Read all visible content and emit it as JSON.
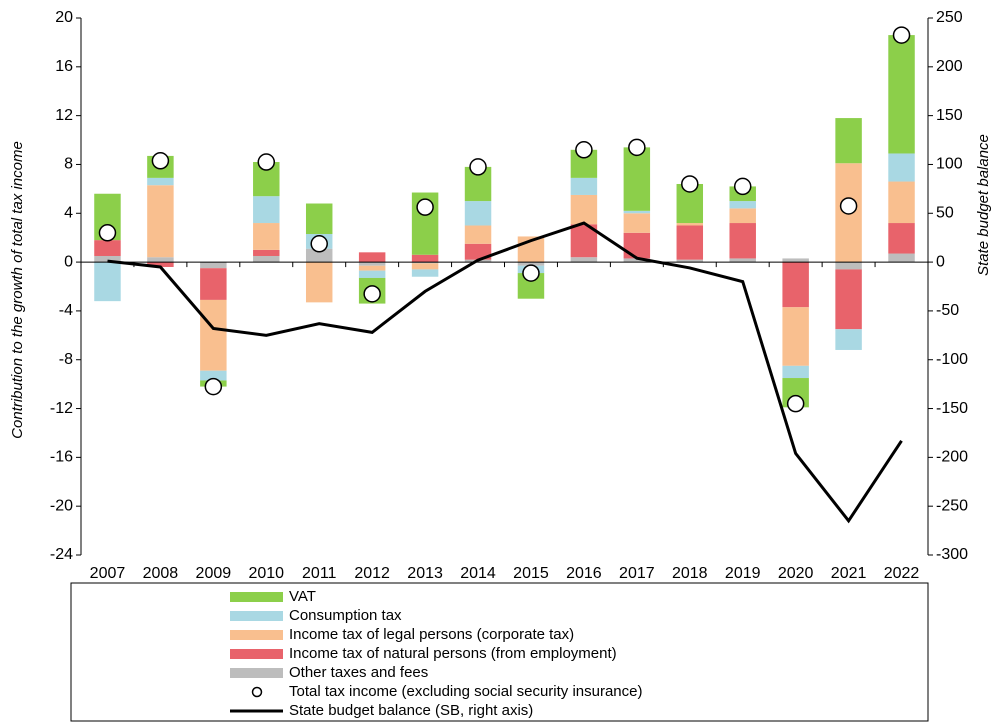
{
  "chart_data": {
    "type": "bar",
    "y_label": "Contribution to the growth of total tax income",
    "y2_label": "State budget balance",
    "categories": [
      "2007",
      "2008",
      "2009",
      "2010",
      "2011",
      "2012",
      "2013",
      "2014",
      "2015",
      "2016",
      "2017",
      "2018",
      "2019",
      "2020",
      "2021",
      "2022"
    ],
    "ylim": [
      -24,
      20
    ],
    "yticks": [
      -24,
      -20,
      -16,
      -12,
      -8,
      -4,
      0,
      4,
      8,
      12,
      16,
      20
    ],
    "y2lim": [
      -300,
      250
    ],
    "y2ticks": [
      -300,
      -250,
      -200,
      -150,
      -100,
      -50,
      0,
      50,
      100,
      150,
      200,
      250
    ],
    "series": [
      {
        "name": "VAT",
        "mark": "bar",
        "color": "#8ccf4a",
        "values": [
          3.8,
          1.8,
          -0.5,
          2.8,
          2.5,
          -2.1,
          5.1,
          2.8,
          -2.1,
          2.3,
          5.2,
          3.2,
          1.2,
          -2.4,
          3.7,
          9.7
        ]
      },
      {
        "name": "Consumption tax",
        "mark": "bar",
        "color": "#a9d8e3",
        "values": [
          -3.2,
          0.6,
          -0.8,
          2.2,
          1.2,
          -0.6,
          -0.6,
          2.0,
          -0.6,
          1.4,
          0.2,
          0,
          0.6,
          -1.0,
          -1.7,
          2.3
        ]
      },
      {
        "name": "Income tax of legal persons (corporate tax)",
        "mark": "bar",
        "color": "#f9bf8f",
        "values": [
          0,
          5.9,
          -5.8,
          2.2,
          -3.3,
          -0.4,
          -0.5,
          1.5,
          2.1,
          2.4,
          1.6,
          0.2,
          1.2,
          -4.8,
          8.1,
          3.4
        ]
      },
      {
        "name": "Income tax of natural persons (from employment)",
        "mark": "bar",
        "color": "#e8636b",
        "values": [
          1.3,
          -0.4,
          -2.6,
          0.5,
          0,
          0.8,
          0.6,
          1.3,
          0,
          2.7,
          2.1,
          2.8,
          2.9,
          -3.7,
          -4.9,
          2.5
        ]
      },
      {
        "name": "Other taxes and fees",
        "mark": "bar",
        "color": "#bdbdbd",
        "values": [
          0.5,
          0.4,
          -0.5,
          0.5,
          1.1,
          -0.3,
          -0.1,
          0.2,
          -0.3,
          0.4,
          0.3,
          0.2,
          0.3,
          0.3,
          -0.6,
          0.7
        ]
      },
      {
        "name": "Total tax income (excluding social security insurance)",
        "mark": "circle",
        "color": "#000000",
        "values": [
          2.4,
          8.3,
          -10.2,
          8.2,
          1.5,
          -2.6,
          4.5,
          7.8,
          -0.9,
          9.2,
          9.4,
          6.4,
          6.2,
          -11.6,
          4.6,
          18.6
        ]
      },
      {
        "name": "State budget balance (SB, right axis)",
        "mark": "line",
        "axis": "y2",
        "color": "#000000",
        "values": [
          1,
          -5,
          -68,
          -75,
          -63,
          -72,
          -30,
          2,
          22,
          40,
          4,
          -6,
          -20,
          -196,
          -265,
          -183
        ]
      }
    ]
  }
}
